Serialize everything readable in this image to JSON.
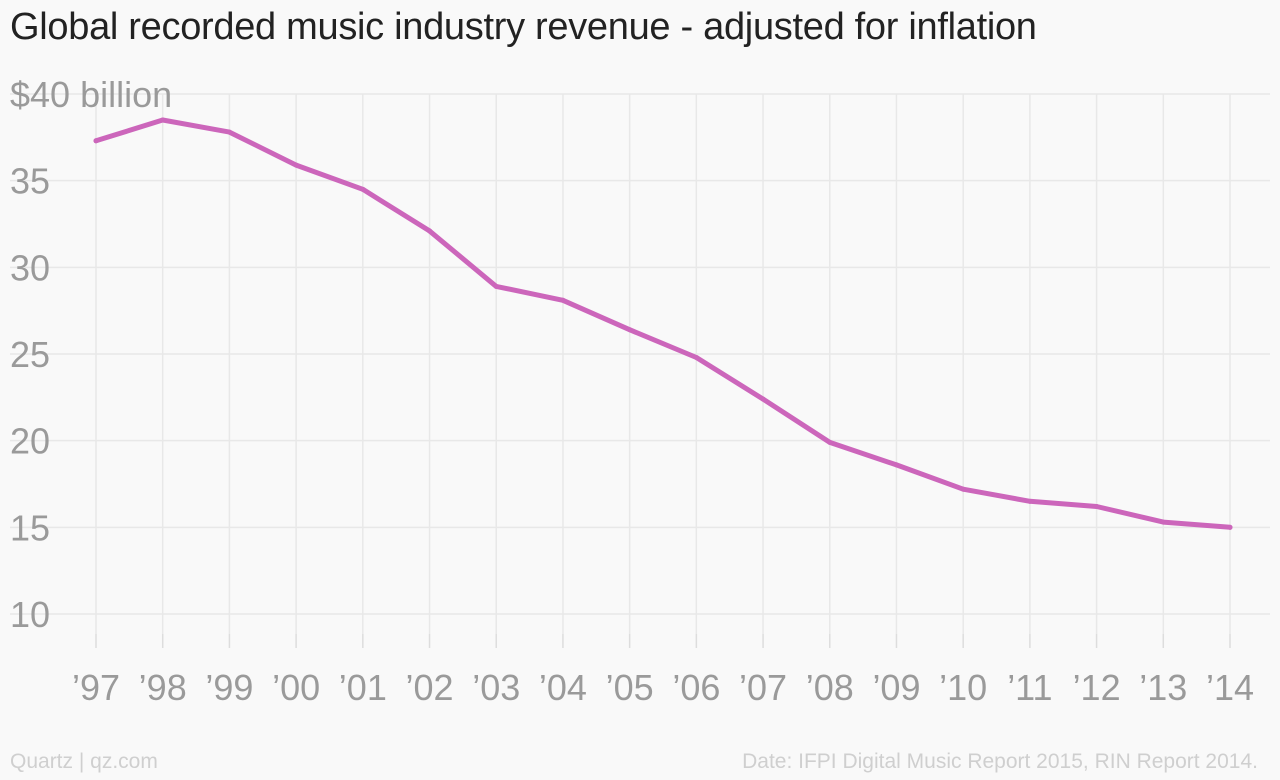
{
  "chart_data": {
    "type": "line",
    "title": "Global recorded music industry revenue - adjusted for inflation",
    "x": [
      "’97",
      "’98",
      "’99",
      "’00",
      "’01",
      "’02",
      "’03",
      "’04",
      "’05",
      "’06",
      "’07",
      "’08",
      "’09",
      "’10",
      "’11",
      "’12",
      "’13",
      "’14"
    ],
    "series": [
      {
        "values": [
          37.3,
          38.5,
          37.8,
          35.9,
          34.5,
          32.1,
          28.9,
          28.1,
          26.4,
          24.8,
          22.4,
          19.9,
          18.6,
          17.2,
          16.5,
          16.2,
          15.3,
          15.0
        ],
        "color": "#cc66bb"
      }
    ],
    "y_ticks": [
      {
        "value": 40,
        "label": "$40 billion"
      },
      {
        "value": 35,
        "label": "35"
      },
      {
        "value": 30,
        "label": "30"
      },
      {
        "value": 25,
        "label": "25"
      },
      {
        "value": 20,
        "label": "20"
      },
      {
        "value": 15,
        "label": "15"
      },
      {
        "value": 10,
        "label": "10"
      }
    ],
    "ylim": [
      10,
      40
    ],
    "grid": true,
    "legend": "none"
  },
  "footer": {
    "credit": "Quartz | qz.com",
    "source": "Date: IFPI Digital Music Report 2015, RIN Report 2014."
  },
  "colors": {
    "line": "#cc66bb",
    "grid": "#e8e8e8",
    "tick_label": "#9a9a9a",
    "title": "#222222",
    "footer": "#cfcfcf"
  }
}
